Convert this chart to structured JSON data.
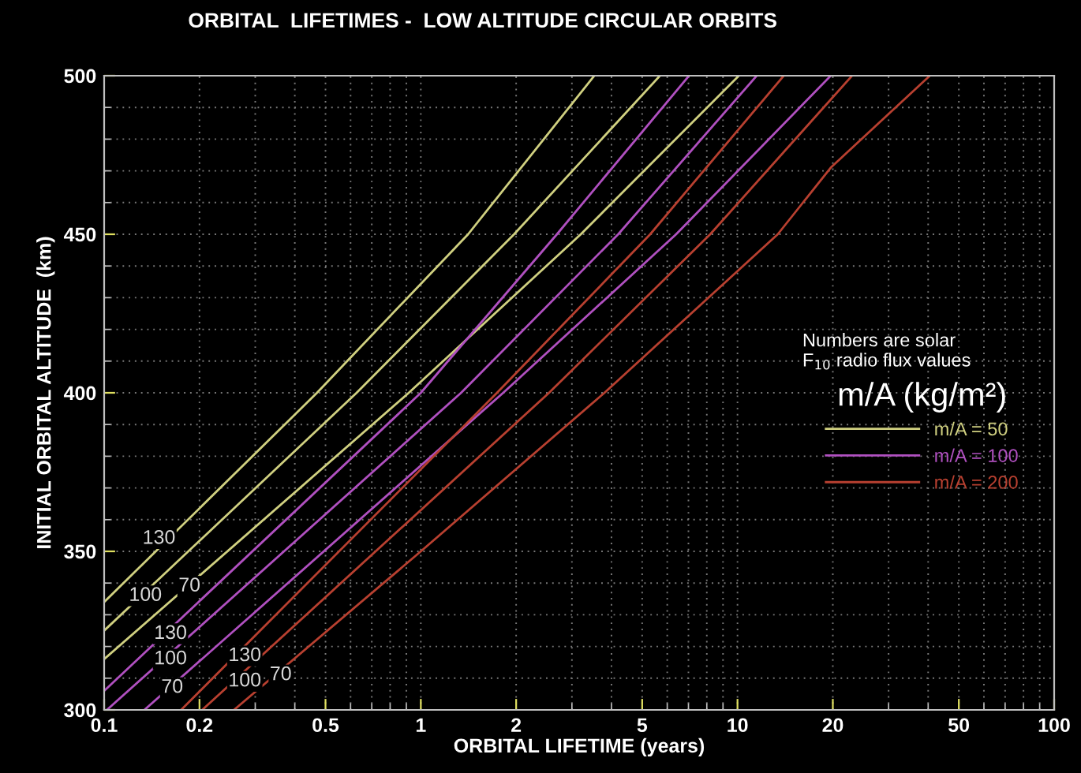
{
  "chart_data": {
    "type": "line",
    "title": "ORBITAL  LIFETIMES -  LOW ALTITUDE CIRCULAR ORBITS",
    "xlabel": "ORBITAL LIFETIME (years)",
    "ylabel": "INITIAL ORBITAL ALTITUDE  (km)",
    "legend_title": "m/A (kg/m²)",
    "log": "x",
    "grid": true,
    "legend": "right",
    "marker": "none",
    "line_style": "solid",
    "xlim": [
      0.1,
      100
    ],
    "xticks": [
      0.1,
      0.2,
      0.5,
      1,
      2,
      5,
      10,
      20,
      50,
      100
    ],
    "ylim": [
      300,
      500
    ],
    "yticks": [
      300,
      350,
      400,
      450,
      500
    ],
    "series": [
      {
        "name": "m/A = 50",
        "color": "#d0d080",
        "x": [
          0.1,
          0.47,
          1.41,
          3.53
        ],
        "values": [
          334,
          400,
          450,
          500
        ]
      },
      {
        "color": "#d0d080",
        "x": [
          0.1,
          0.627,
          1.97,
          5.69
        ],
        "values": [
          325,
          400,
          450,
          500
        ]
      },
      {
        "color": "#d0d080",
        "x": [
          0.1,
          0.916,
          3.2,
          10.1
        ],
        "values": [
          316,
          400,
          450,
          500
        ]
      },
      {
        "name": "m/A = 100",
        "color": "#b050c0",
        "x": [
          0.1,
          1.0,
          2.69,
          7.03
        ],
        "values": [
          306,
          400,
          450,
          500
        ]
      },
      {
        "color": "#b050c0",
        "x": [
          0.102,
          1.34,
          4.2,
          11.5
        ],
        "values": [
          300,
          400,
          450,
          500
        ]
      },
      {
        "color": "#b050c0",
        "x": [
          0.134,
          1.82,
          6.4,
          19.7
        ],
        "values": [
          300,
          400,
          450,
          500
        ]
      },
      {
        "name": "m/A = 200",
        "color": "#b84030",
        "x": [
          0.175,
          1.74,
          5.3,
          14.0
        ],
        "values": [
          300,
          400,
          450,
          500
        ]
      },
      {
        "color": "#b84030",
        "x": [
          0.204,
          2.54,
          8.2,
          23.0
        ],
        "values": [
          300,
          400,
          450,
          500
        ]
      },
      {
        "color": "#b84030",
        "x": [
          0.257,
          1.0,
          3.8,
          13.4,
          19.7,
          40.5
        ],
        "values": [
          300,
          350,
          400,
          450,
          471,
          500
        ]
      }
    ],
    "annotations": [
      {
        "text": "130",
        "x": 0.149,
        "y": 354
      },
      {
        "text": "100",
        "x": 0.135,
        "y": 336
      },
      {
        "text": "70",
        "x": 0.186,
        "y": 339
      },
      {
        "text": "130",
        "x": 0.162,
        "y": 324
      },
      {
        "text": "100",
        "x": 0.162,
        "y": 316
      },
      {
        "text": "70",
        "x": 0.164,
        "y": 307
      },
      {
        "text": "130",
        "x": 0.278,
        "y": 317
      },
      {
        "text": "100",
        "x": 0.278,
        "y": 309
      },
      {
        "text": "70",
        "x": 0.361,
        "y": 311
      },
      "Numbers are solar\nF$_{10}$ radio flux values"
    ]
  }
}
